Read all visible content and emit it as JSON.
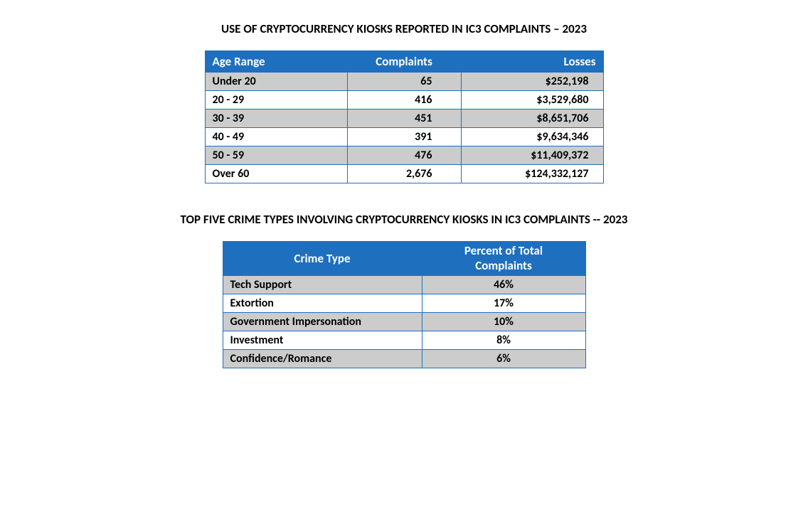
{
  "section1": {
    "title": "USE OF CRYPTOCURRENCY KIOSKS REPORTED IN IC3 COMPLAINTS – 2023",
    "table": {
      "columns": [
        "Age Range",
        "Complaints",
        "Losses"
      ],
      "rows": [
        [
          "Under 20",
          "65",
          "$252,198"
        ],
        [
          "20 - 29",
          "416",
          "$3,529,680"
        ],
        [
          "30 - 39",
          "451",
          "$8,651,706"
        ],
        [
          "40 - 49",
          "391",
          "$9,634,346"
        ],
        [
          "50 - 59",
          "476",
          "$11,409,372"
        ],
        [
          "Over 60",
          "2,676",
          "$124,332,127"
        ]
      ],
      "header_bg": "#1f6fbf",
      "header_fg": "#ffffff",
      "row_odd_bg": "#cccccc",
      "row_even_bg": "#ffffff",
      "border_color": "#1f6fbf"
    }
  },
  "section2": {
    "title": "TOP FIVE CRIME TYPES INVOLVING CRYPTOCURRENCY KIOSKS IN IC3 COMPLAINTS -- 2023",
    "table": {
      "columns": [
        "Crime Type",
        "Percent of Total Complaints"
      ],
      "col2_lines": [
        "Percent of Total",
        "Complaints"
      ],
      "rows": [
        [
          "Tech Support",
          "46%"
        ],
        [
          "Extortion",
          "17%"
        ],
        [
          "Government Impersonation",
          "10%"
        ],
        [
          "Investment",
          "8%"
        ],
        [
          "Confidence/Romance",
          "6%"
        ]
      ],
      "header_bg": "#1f6fbf",
      "header_fg": "#ffffff",
      "row_odd_bg": "#cccccc",
      "row_even_bg": "#ffffff",
      "border_color": "#1f6fbf"
    }
  }
}
